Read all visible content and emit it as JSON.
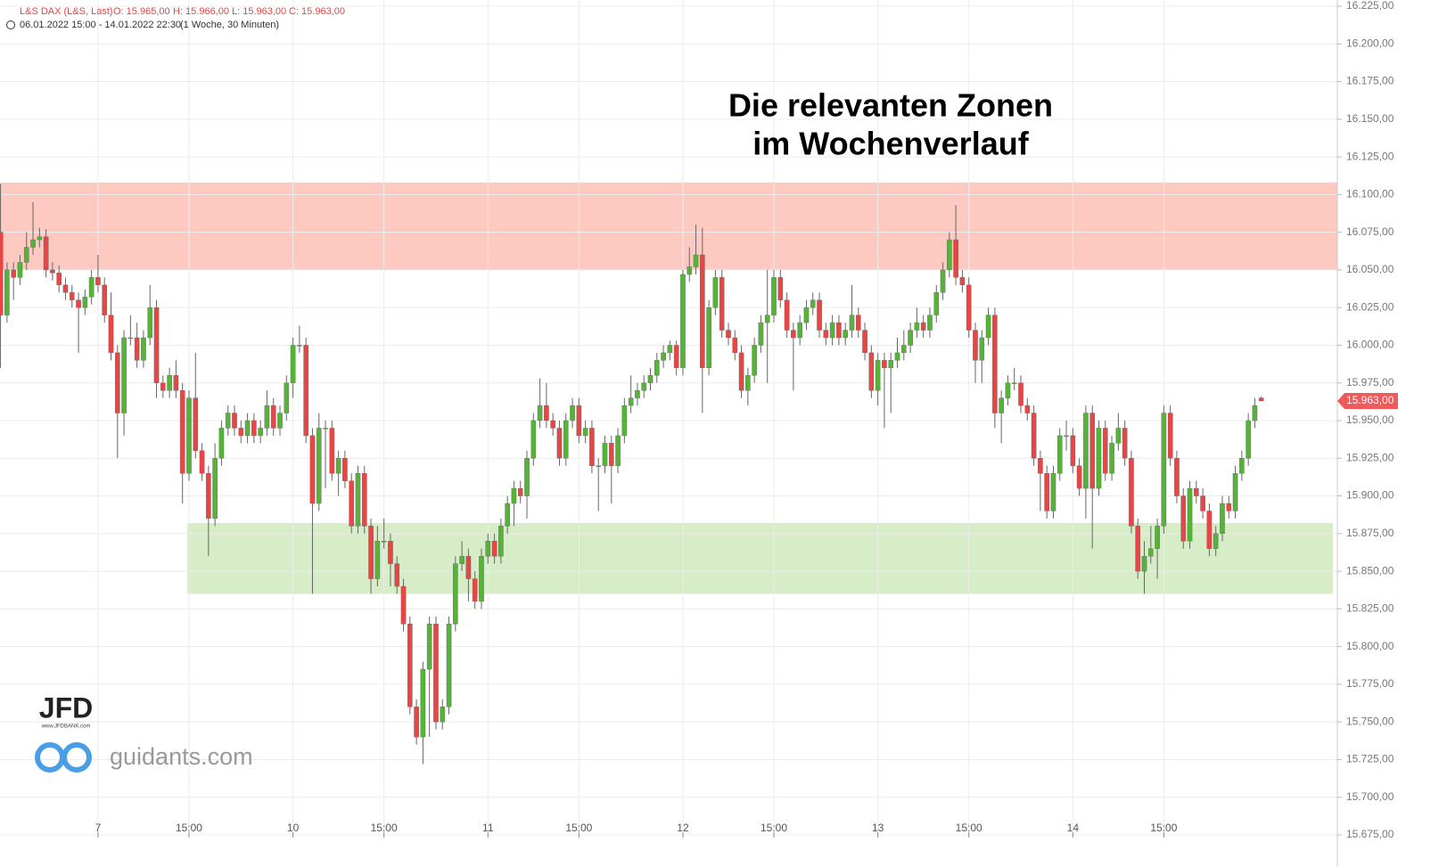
{
  "chart_data": {
    "type": "candlestick",
    "title": [
      "Die relevanten Zonen",
      "im Wochenverlauf"
    ],
    "instrument": "L&S DAX (L&S, Last)",
    "ohlc_labels": [
      "O: 15.965,00",
      "H: 15.966,00",
      "L: 15.963,00",
      "C: 15.963,00"
    ],
    "period": "06.01.2022 15:00 - 14.01.2022 22:30",
    "interval": "(1 Woche, 30 Minuten)",
    "logos": [
      "JFD",
      "www.JFDBANK.com",
      "guidants.com"
    ],
    "up_color": "#55b337",
    "down_color": "#e84545",
    "grid": true,
    "last_price": {
      "value": 15963,
      "label": "15.963,00"
    },
    "zones": [
      {
        "xlim": [
          -0.08,
          205.7
        ],
        "ylim": [
          16050,
          16108
        ],
        "color": "#fdc9c1"
      },
      {
        "xlim": [
          28.7,
          205.0
        ],
        "ylim": [
          15835,
          15882
        ],
        "color": "#d6edc8"
      }
    ],
    "xlim": [
      -0.08,
      205.7
    ],
    "xticks": [
      {
        "value": 15,
        "label": "7"
      },
      {
        "value": 29,
        "label": "15:00"
      },
      {
        "value": 45,
        "label": "10"
      },
      {
        "value": 59,
        "label": "15:00"
      },
      {
        "value": 75,
        "label": "11"
      },
      {
        "value": 89,
        "label": "15:00"
      },
      {
        "value": 105,
        "label": "12"
      },
      {
        "value": 119,
        "label": "15:00"
      },
      {
        "value": 135,
        "label": "13"
      },
      {
        "value": 149,
        "label": "15:00"
      },
      {
        "value": 165,
        "label": "14"
      },
      {
        "value": 179,
        "label": "15:00"
      }
    ],
    "ylim": [
      15675,
      16225
    ],
    "yticks": [
      {
        "value": 15675,
        "label": "15.675,00"
      },
      {
        "value": 15700,
        "label": "15.700,00"
      },
      {
        "value": 15725,
        "label": "15.725,00"
      },
      {
        "value": 15750,
        "label": "15.750,00"
      },
      {
        "value": 15775,
        "label": "15.775,00"
      },
      {
        "value": 15800,
        "label": "15.800,00"
      },
      {
        "value": 15825,
        "label": "15.825,00"
      },
      {
        "value": 15850,
        "label": "15.850,00"
      },
      {
        "value": 15875,
        "label": "15.875,00"
      },
      {
        "value": 15900,
        "label": "15.900,00"
      },
      {
        "value": 15925,
        "label": "15.925,00"
      },
      {
        "value": 15950,
        "label": "15.950,00"
      },
      {
        "value": 15975,
        "label": "15.975,00"
      },
      {
        "value": 16000,
        "label": "16.000,00"
      },
      {
        "value": 16025,
        "label": "16.025,00"
      },
      {
        "value": 16050,
        "label": "16.050,00"
      },
      {
        "value": 16075,
        "label": "16.075,00"
      },
      {
        "value": 16100,
        "label": "16.100,00"
      },
      {
        "value": 16125,
        "label": "16.125,00"
      },
      {
        "value": 16150,
        "label": "16.150,00"
      },
      {
        "value": 16175,
        "label": "16.175,00"
      },
      {
        "value": 16200,
        "label": "16.200,00"
      },
      {
        "value": 16225,
        "label": "16.225,00"
      }
    ],
    "candles": [
      [
        16075,
        16107,
        15985,
        16020
      ],
      [
        16020,
        16055,
        16015,
        16050
      ],
      [
        16050,
        16055,
        16030,
        16045
      ],
      [
        16045,
        16060,
        16040,
        16055
      ],
      [
        16055,
        16075,
        16050,
        16065
      ],
      [
        16065,
        16095,
        16060,
        16070
      ],
      [
        16070,
        16078,
        16065,
        16072
      ],
      [
        16072,
        16077,
        16045,
        16050
      ],
      [
        16050,
        16055,
        16043,
        16048
      ],
      [
        16048,
        16053,
        16035,
        16040
      ],
      [
        16040,
        16045,
        16030,
        16035
      ],
      [
        16035,
        16040,
        16025,
        16030
      ],
      [
        16030,
        16035,
        15995,
        16025
      ],
      [
        16025,
        16037,
        16020,
        16032
      ],
      [
        16032,
        16050,
        16027,
        16045
      ],
      [
        16045,
        16060,
        16035,
        16040
      ],
      [
        16040,
        16045,
        16015,
        16020
      ],
      [
        16020,
        16035,
        15990,
        15995
      ],
      [
        15995,
        16000,
        15925,
        15955
      ],
      [
        15955,
        16010,
        15940,
        16005
      ],
      [
        16005,
        16020,
        16000,
        16005
      ],
      [
        16005,
        16015,
        15985,
        15990
      ],
      [
        15990,
        16010,
        15985,
        16005
      ],
      [
        16005,
        16040,
        16000,
        16025
      ],
      [
        16025,
        16030,
        15965,
        15975
      ],
      [
        15975,
        15980,
        15965,
        15970
      ],
      [
        15970,
        15985,
        15965,
        15980
      ],
      [
        15980,
        15990,
        15965,
        15970
      ],
      [
        15970,
        15975,
        15895,
        15915
      ],
      [
        15915,
        15970,
        15910,
        15965
      ],
      [
        15965,
        15995,
        15925,
        15930
      ],
      [
        15930,
        15935,
        15910,
        15915
      ],
      [
        15915,
        15920,
        15860,
        15885
      ],
      [
        15885,
        15935,
        15880,
        15925
      ],
      [
        15925,
        15950,
        15920,
        15945
      ],
      [
        15945,
        15960,
        15940,
        15955
      ],
      [
        15955,
        15960,
        15940,
        15945
      ],
      [
        15945,
        15950,
        15935,
        15940
      ],
      [
        15940,
        15955,
        15935,
        15950
      ],
      [
        15950,
        15955,
        15935,
        15940
      ],
      [
        15940,
        15950,
        15935,
        15945
      ],
      [
        15945,
        15970,
        15940,
        15960
      ],
      [
        15960,
        15965,
        15940,
        15945
      ],
      [
        15945,
        15960,
        15940,
        15955
      ],
      [
        15955,
        15980,
        15950,
        15975
      ],
      [
        15975,
        16005,
        15965,
        16000
      ],
      [
        16000,
        16013,
        15995,
        16000
      ],
      [
        16000,
        16005,
        15935,
        15940
      ],
      [
        15940,
        15945,
        15835,
        15895
      ],
      [
        15895,
        15955,
        15890,
        15945
      ],
      [
        15945,
        15950,
        15905,
        15945
      ],
      [
        15945,
        15950,
        15910,
        15915
      ],
      [
        15915,
        15930,
        15900,
        15925
      ],
      [
        15925,
        15930,
        15905,
        15910
      ],
      [
        15910,
        15915,
        15875,
        15880
      ],
      [
        15880,
        15920,
        15875,
        15915
      ],
      [
        15915,
        15920,
        15875,
        15880
      ],
      [
        15880,
        15885,
        15835,
        15845
      ],
      [
        15845,
        15880,
        15840,
        15870
      ],
      [
        15870,
        15885,
        15865,
        15870
      ],
      [
        15870,
        15875,
        15840,
        15855
      ],
      [
        15855,
        15860,
        15835,
        15840
      ],
      [
        15840,
        15845,
        15810,
        15815
      ],
      [
        15815,
        15820,
        15755,
        15760
      ],
      [
        15760,
        15765,
        15735,
        15740
      ],
      [
        15740,
        15790,
        15722,
        15785
      ],
      [
        15785,
        15820,
        15740,
        15815
      ],
      [
        15815,
        15820,
        15745,
        15750
      ],
      [
        15750,
        15765,
        15745,
        15760
      ],
      [
        15760,
        15820,
        15755,
        15815
      ],
      [
        15815,
        15860,
        15810,
        15855
      ],
      [
        15855,
        15870,
        15850,
        15860
      ],
      [
        15860,
        15865,
        15830,
        15845
      ],
      [
        15845,
        15850,
        15825,
        15830
      ],
      [
        15830,
        15865,
        15825,
        15860
      ],
      [
        15860,
        15875,
        15855,
        15870
      ],
      [
        15870,
        15875,
        15855,
        15860
      ],
      [
        15860,
        15885,
        15855,
        15880
      ],
      [
        15880,
        15900,
        15875,
        15895
      ],
      [
        15895,
        15910,
        15880,
        15905
      ],
      [
        15905,
        15910,
        15895,
        15900
      ],
      [
        15900,
        15930,
        15885,
        15925
      ],
      [
        15925,
        15955,
        15920,
        15950
      ],
      [
        15950,
        15978,
        15945,
        15960
      ],
      [
        15960,
        15975,
        15945,
        15950
      ],
      [
        15950,
        15955,
        15940,
        15945
      ],
      [
        15945,
        15950,
        15920,
        15925
      ],
      [
        15925,
        15955,
        15920,
        15950
      ],
      [
        15950,
        15965,
        15945,
        15960
      ],
      [
        15960,
        15965,
        15935,
        15940
      ],
      [
        15940,
        15950,
        15935,
        15945
      ],
      [
        15945,
        15950,
        15915,
        15920
      ],
      [
        15920,
        15925,
        15890,
        15920
      ],
      [
        15920,
        15940,
        15915,
        15935
      ],
      [
        15935,
        15940,
        15895,
        15920
      ],
      [
        15920,
        15945,
        15915,
        15940
      ],
      [
        15940,
        15965,
        15935,
        15960
      ],
      [
        15960,
        15980,
        15955,
        15965
      ],
      [
        15965,
        15975,
        15960,
        15970
      ],
      [
        15970,
        15980,
        15965,
        15975
      ],
      [
        15975,
        15985,
        15970,
        15980
      ],
      [
        15980,
        15995,
        15975,
        15990
      ],
      [
        15990,
        16000,
        15985,
        15995
      ],
      [
        15995,
        16003,
        15990,
        16000
      ],
      [
        16000,
        16003,
        15980,
        15985
      ],
      [
        15985,
        16050,
        15980,
        16047
      ],
      [
        16047,
        16065,
        16042,
        16052
      ],
      [
        16052,
        16080,
        16047,
        16060
      ],
      [
        16060,
        16078,
        15955,
        15985
      ],
      [
        15985,
        16030,
        15980,
        16025
      ],
      [
        16025,
        16050,
        16020,
        16045
      ],
      [
        16045,
        16050,
        16005,
        16010
      ],
      [
        16010,
        16015,
        16000,
        16005
      ],
      [
        16005,
        16010,
        15990,
        15995
      ],
      [
        15995,
        16000,
        15965,
        15970
      ],
      [
        15970,
        15985,
        15960,
        15980
      ],
      [
        15980,
        16005,
        15975,
        16000
      ],
      [
        16000,
        16020,
        15995,
        16015
      ],
      [
        16015,
        16050,
        15975,
        16020
      ],
      [
        16020,
        16050,
        16015,
        16045
      ],
      [
        16045,
        16050,
        16025,
        16030
      ],
      [
        16030,
        16035,
        16005,
        16010
      ],
      [
        16010,
        16015,
        15970,
        16005
      ],
      [
        16005,
        16020,
        16000,
        16015
      ],
      [
        16015,
        16030,
        16010,
        16025
      ],
      [
        16025,
        16035,
        16020,
        16030
      ],
      [
        16030,
        16035,
        16005,
        16010
      ],
      [
        16010,
        16015,
        16000,
        16005
      ],
      [
        16005,
        16020,
        16000,
        16015
      ],
      [
        16015,
        16020,
        16000,
        16005
      ],
      [
        16005,
        16015,
        16000,
        16010
      ],
      [
        16010,
        16040,
        16005,
        16020
      ],
      [
        16020,
        16025,
        16005,
        16010
      ],
      [
        16010,
        16015,
        15990,
        15995
      ],
      [
        15995,
        16000,
        15965,
        15970
      ],
      [
        15970,
        15995,
        15960,
        15990
      ],
      [
        15990,
        15995,
        15945,
        15985
      ],
      [
        15985,
        15995,
        15955,
        15990
      ],
      [
        15990,
        16005,
        15985,
        15995
      ],
      [
        15995,
        16010,
        15990,
        16000
      ],
      [
        16000,
        16015,
        15995,
        16010
      ],
      [
        16010,
        16025,
        16005,
        16015
      ],
      [
        16015,
        16020,
        16005,
        16010
      ],
      [
        16010,
        16025,
        16005,
        16020
      ],
      [
        16020,
        16040,
        16015,
        16035
      ],
      [
        16035,
        16055,
        16030,
        16050
      ],
      [
        16050,
        16075,
        16045,
        16070
      ],
      [
        16070,
        16093,
        16040,
        16045
      ],
      [
        16045,
        16050,
        16035,
        16040
      ],
      [
        16040,
        16045,
        16005,
        16010
      ],
      [
        16010,
        16015,
        15975,
        15990
      ],
      [
        15990,
        16010,
        15975,
        16005
      ],
      [
        16005,
        16025,
        16000,
        16020
      ],
      [
        16020,
        16025,
        15945,
        15955
      ],
      [
        15955,
        15970,
        15935,
        15965
      ],
      [
        15965,
        15980,
        15960,
        15975
      ],
      [
        15975,
        15985,
        15970,
        15975
      ],
      [
        15975,
        15980,
        15955,
        15960
      ],
      [
        15960,
        15965,
        15950,
        15955
      ],
      [
        15955,
        15960,
        15920,
        15925
      ],
      [
        15925,
        15930,
        15890,
        15915
      ],
      [
        15915,
        15920,
        15885,
        15890
      ],
      [
        15890,
        15920,
        15885,
        15915
      ],
      [
        15915,
        15945,
        15910,
        15940
      ],
      [
        15940,
        15950,
        15930,
        15940
      ],
      [
        15940,
        15945,
        15915,
        15920
      ],
      [
        15920,
        15925,
        15900,
        15905
      ],
      [
        15905,
        15960,
        15885,
        15955
      ],
      [
        15955,
        15960,
        15865,
        15905
      ],
      [
        15905,
        15950,
        15900,
        15945
      ],
      [
        15945,
        15950,
        15910,
        15915
      ],
      [
        15915,
        15940,
        15910,
        15935
      ],
      [
        15935,
        15955,
        15930,
        15945
      ],
      [
        15945,
        15950,
        15920,
        15925
      ],
      [
        15925,
        15930,
        15875,
        15880
      ],
      [
        15880,
        15885,
        15845,
        15850
      ],
      [
        15850,
        15870,
        15835,
        15860
      ],
      [
        15860,
        15880,
        15855,
        15865
      ],
      [
        15865,
        15885,
        15845,
        15880
      ],
      [
        15880,
        15960,
        15875,
        15955
      ],
      [
        15955,
        15960,
        15920,
        15925
      ],
      [
        15925,
        15930,
        15895,
        15900
      ],
      [
        15900,
        15905,
        15865,
        15870
      ],
      [
        15870,
        15910,
        15865,
        15905
      ],
      [
        15905,
        15910,
        15895,
        15900
      ],
      [
        15900,
        15905,
        15885,
        15890
      ],
      [
        15890,
        15895,
        15860,
        15865
      ],
      [
        15865,
        15880,
        15860,
        15875
      ],
      [
        15875,
        15900,
        15870,
        15895
      ],
      [
        15895,
        15900,
        15885,
        15890
      ],
      [
        15890,
        15920,
        15885,
        15915
      ],
      [
        15915,
        15930,
        15910,
        15925
      ],
      [
        15925,
        15955,
        15920,
        15950
      ],
      [
        15950,
        15965,
        15945,
        15960
      ],
      [
        15965,
        15966,
        15963,
        15963
      ]
    ]
  }
}
